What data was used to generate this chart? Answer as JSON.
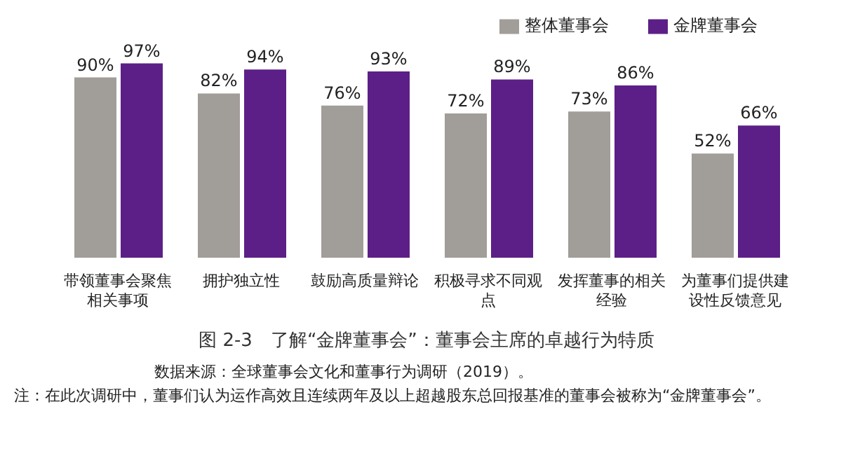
{
  "chart_data": {
    "type": "bar",
    "title": "图 2-3　了解“金牌董事会”：董事会主席的卓越行为特质",
    "categories": [
      "带领董事会聚焦相关事项",
      "拥护独立性",
      "鼓励高质量辩论",
      "积极寻求不同观点",
      "发挥董事的相关经验",
      "为董事们提供建设性反馈意见"
    ],
    "series": [
      {
        "name": "整体董事会",
        "color": "#a19d99",
        "values": [
          90,
          82,
          76,
          72,
          73,
          52
        ],
        "value_labels": [
          "90%",
          "82%",
          "76%",
          "72%",
          "73%",
          "52%"
        ]
      },
      {
        "name": "金牌董事会",
        "color": "#5c1f87",
        "values": [
          97,
          94,
          93,
          89,
          86,
          66
        ],
        "value_labels": [
          "97%",
          "94%",
          "93%",
          "89%",
          "86%",
          "66%"
        ]
      }
    ],
    "legend": "top right",
    "grid": false,
    "tick_labels": "x",
    "annotations": [
      "数据来源：全球董事会文化和董事行为调研（2019）。",
      "注：在此次调研中，董事们认为运作高效且连续两年及以上超越股东总回报基准的董事会被称为“金牌董事会”。"
    ]
  }
}
